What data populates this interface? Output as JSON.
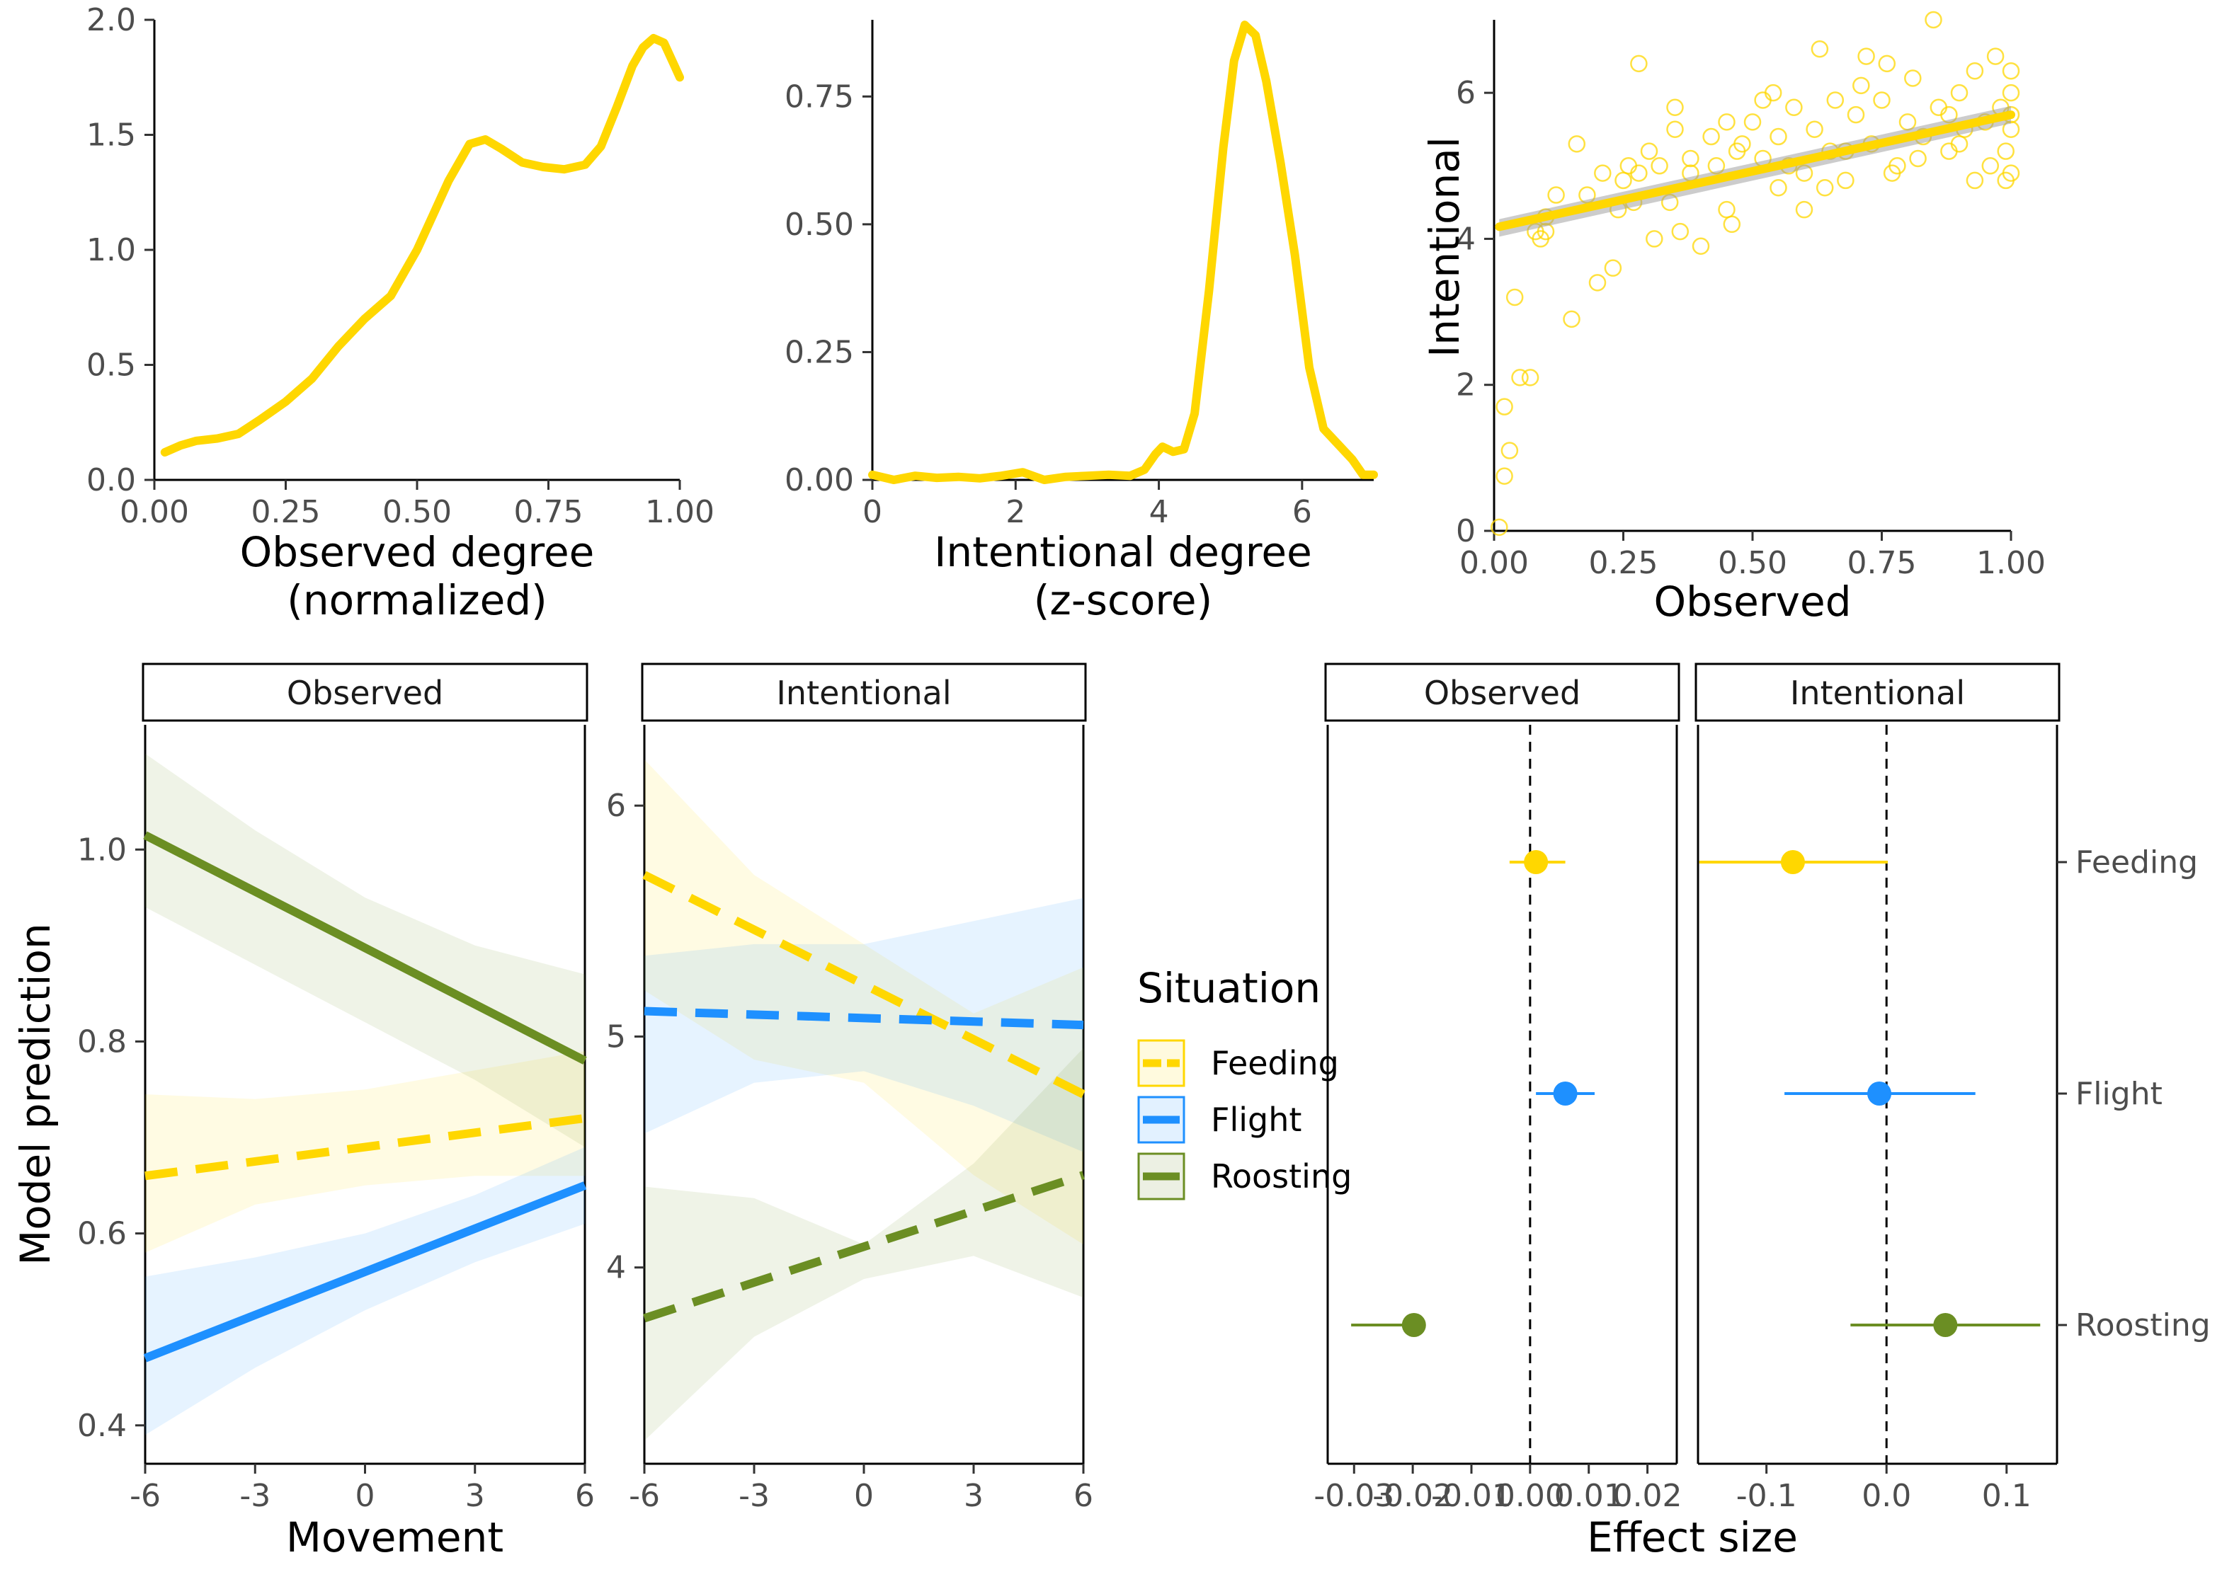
{
  "colors": {
    "Feeding": "#FFD700",
    "Flight": "#1E90FF",
    "Roosting": "#6B8E23"
  },
  "legend": {
    "title": "Situation",
    "items": [
      "Feeding",
      "Flight",
      "Roosting"
    ]
  },
  "chart_data": [
    {
      "id": "density_observed",
      "type": "line",
      "xlabel": "Observed degree\n(normalized)",
      "ylabel": "",
      "xlim": [
        0,
        1
      ],
      "ylim": [
        0,
        2.0
      ],
      "xticks": [
        0,
        0.25,
        0.5,
        0.75,
        1.0
      ],
      "xtick_labels": [
        "0.00",
        "0.25",
        "0.50",
        "0.75",
        "1.00"
      ],
      "yticks": [
        0,
        0.5,
        1.0,
        1.5,
        2.0
      ],
      "ytick_labels": [
        "0.0",
        "0.5",
        "1.0",
        "1.5",
        "2.0"
      ],
      "series": [
        {
          "color": "Feeding",
          "x": [
            0.02,
            0.05,
            0.08,
            0.12,
            0.16,
            0.2,
            0.25,
            0.3,
            0.35,
            0.4,
            0.45,
            0.5,
            0.53,
            0.56,
            0.6,
            0.63,
            0.66,
            0.7,
            0.74,
            0.78,
            0.82,
            0.85,
            0.88,
            0.91,
            0.93,
            0.95,
            0.97,
            0.99,
            1.0
          ],
          "y": [
            0.12,
            0.15,
            0.17,
            0.18,
            0.2,
            0.26,
            0.34,
            0.44,
            0.58,
            0.7,
            0.8,
            1.0,
            1.15,
            1.3,
            1.46,
            1.48,
            1.44,
            1.38,
            1.36,
            1.35,
            1.37,
            1.45,
            1.62,
            1.8,
            1.88,
            1.92,
            1.9,
            1.8,
            1.75
          ]
        }
      ]
    },
    {
      "id": "density_intentional",
      "type": "line",
      "xlabel": "Intentional degree\n(z-score)",
      "ylabel": "",
      "xlim": [
        0,
        7
      ],
      "ylim": [
        0,
        0.9
      ],
      "xticks": [
        0,
        2,
        4,
        6
      ],
      "xtick_labels": [
        "0",
        "2",
        "4",
        "6"
      ],
      "yticks": [
        0,
        0.25,
        0.5,
        0.75
      ],
      "ytick_labels": [
        "0.00",
        "0.25",
        "0.50",
        "0.75"
      ],
      "series": [
        {
          "color": "Feeding",
          "x": [
            0.0,
            0.3,
            0.6,
            0.9,
            1.2,
            1.5,
            1.8,
            2.1,
            2.4,
            2.7,
            3.0,
            3.3,
            3.6,
            3.8,
            3.95,
            4.05,
            4.2,
            4.35,
            4.5,
            4.7,
            4.9,
            5.05,
            5.2,
            5.35,
            5.5,
            5.7,
            5.9,
            6.1,
            6.3,
            6.5,
            6.7,
            6.85,
            7.0
          ],
          "y": [
            0.01,
            0.0,
            0.008,
            0.004,
            0.006,
            0.003,
            0.008,
            0.015,
            0.0,
            0.006,
            0.008,
            0.01,
            0.008,
            0.02,
            0.05,
            0.065,
            0.055,
            0.06,
            0.13,
            0.37,
            0.65,
            0.82,
            0.89,
            0.87,
            0.78,
            0.62,
            0.44,
            0.22,
            0.1,
            0.07,
            0.04,
            0.01,
            0.01
          ]
        }
      ]
    },
    {
      "id": "scatter_observed_intentional",
      "type": "scatter",
      "xlabel": "Observed",
      "ylabel": "Intentional",
      "xlim": [
        0,
        1
      ],
      "ylim": [
        0,
        7
      ],
      "xticks": [
        0,
        0.25,
        0.5,
        0.75,
        1.0
      ],
      "xtick_labels": [
        "0.00",
        "0.25",
        "0.50",
        "0.75",
        "1.00"
      ],
      "yticks": [
        0,
        2,
        4,
        6
      ],
      "ytick_labels": [
        "0",
        "2",
        "4",
        "6"
      ],
      "fit": {
        "x": [
          0.0,
          1.0
        ],
        "y": [
          4.15,
          5.7
        ],
        "band": [
          0.12,
          0.12
        ]
      },
      "points": {
        "x": [
          0.01,
          0.02,
          0.02,
          0.03,
          0.04,
          0.05,
          0.07,
          0.08,
          0.09,
          0.1,
          0.1,
          0.12,
          0.15,
          0.16,
          0.18,
          0.2,
          0.21,
          0.23,
          0.25,
          0.26,
          0.27,
          0.28,
          0.3,
          0.31,
          0.32,
          0.34,
          0.35,
          0.36,
          0.38,
          0.4,
          0.42,
          0.43,
          0.45,
          0.46,
          0.48,
          0.5,
          0.52,
          0.54,
          0.55,
          0.57,
          0.58,
          0.6,
          0.62,
          0.63,
          0.65,
          0.66,
          0.68,
          0.7,
          0.71,
          0.73,
          0.75,
          0.76,
          0.78,
          0.8,
          0.81,
          0.83,
          0.85,
          0.86,
          0.88,
          0.9,
          0.91,
          0.93,
          0.95,
          0.96,
          0.97,
          0.98,
          0.99,
          1.0,
          1.0,
          1.0,
          1.0,
          1.0,
          0.6,
          0.45,
          0.52,
          0.68,
          0.72,
          0.35,
          0.28,
          0.64,
          0.82,
          0.77,
          0.9,
          0.93,
          0.55,
          0.47,
          0.38,
          0.24,
          0.88,
          0.99
        ],
        "y": [
          0.05,
          0.75,
          1.7,
          1.1,
          3.2,
          2.1,
          2.1,
          4.1,
          4.0,
          4.1,
          4.3,
          4.6,
          2.9,
          5.3,
          4.6,
          3.4,
          4.9,
          3.6,
          4.8,
          5.0,
          4.5,
          6.4,
          5.2,
          4.0,
          5.0,
          4.5,
          5.8,
          4.1,
          5.1,
          3.9,
          5.4,
          5.0,
          5.6,
          4.2,
          5.3,
          5.6,
          5.1,
          6.0,
          5.4,
          5.0,
          5.8,
          4.4,
          5.5,
          6.6,
          5.2,
          5.9,
          4.8,
          5.7,
          6.1,
          5.3,
          5.9,
          6.4,
          5.0,
          5.6,
          6.2,
          5.4,
          7.0,
          5.8,
          5.2,
          6.0,
          5.5,
          6.3,
          5.6,
          5.0,
          6.5,
          5.8,
          5.2,
          6.0,
          5.5,
          6.3,
          4.9,
          5.7,
          4.9,
          4.4,
          5.9,
          5.2,
          6.5,
          5.5,
          4.9,
          4.7,
          5.1,
          4.9,
          5.3,
          4.8,
          4.7,
          5.2,
          4.9,
          4.4,
          5.7,
          4.8
        ]
      }
    },
    {
      "id": "prediction_observed",
      "type": "line",
      "strip": "Observed",
      "xlabel": "Movement",
      "ylabel": "Model prediction",
      "xlim": [
        -6,
        6
      ],
      "ylim": [
        0.36,
        1.13
      ],
      "xticks": [
        -6,
        -3,
        0,
        3,
        6
      ],
      "xtick_labels": [
        "-6",
        "-3",
        "0",
        "3",
        "6"
      ],
      "yticks": [
        0.4,
        0.6,
        0.8,
        1.0
      ],
      "ytick_labels": [
        "0.4",
        "0.6",
        "0.8",
        "1.0"
      ],
      "series": [
        {
          "name": "Feeding",
          "dashed": true,
          "x": [
            -6,
            6
          ],
          "y": [
            0.66,
            0.72
          ],
          "band_x": [
            -6,
            -3,
            0,
            3,
            6
          ],
          "band_lo": [
            0.58,
            0.63,
            0.65,
            0.66,
            0.66
          ],
          "band_hi": [
            0.745,
            0.74,
            0.75,
            0.77,
            0.79
          ]
        },
        {
          "name": "Flight",
          "dashed": false,
          "x": [
            -6,
            6
          ],
          "y": [
            0.47,
            0.65
          ],
          "band_x": [
            -6,
            -3,
            0,
            3,
            6
          ],
          "band_lo": [
            0.39,
            0.46,
            0.52,
            0.57,
            0.61
          ],
          "band_hi": [
            0.555,
            0.575,
            0.6,
            0.64,
            0.69
          ]
        },
        {
          "name": "Roosting",
          "dashed": false,
          "x": [
            -6,
            6
          ],
          "y": [
            1.015,
            0.78
          ],
          "band_x": [
            -6,
            -3,
            0,
            3,
            6
          ],
          "band_lo": [
            0.94,
            0.88,
            0.82,
            0.76,
            0.69
          ],
          "band_hi": [
            1.1,
            1.02,
            0.95,
            0.9,
            0.87
          ]
        }
      ]
    },
    {
      "id": "prediction_intentional",
      "type": "line",
      "strip": "Intentional",
      "xlabel": "Movement",
      "ylabel": "",
      "xlim": [
        -6,
        6
      ],
      "ylim": [
        3.15,
        6.35
      ],
      "xticks": [
        -6,
        -3,
        0,
        3,
        6
      ],
      "xtick_labels": [
        "-6",
        "-3",
        "0",
        "3",
        "6"
      ],
      "yticks": [
        4,
        5,
        6
      ],
      "ytick_labels": [
        "4",
        "5",
        "6"
      ],
      "series": [
        {
          "name": "Feeding",
          "dashed": true,
          "x": [
            -6,
            6
          ],
          "y": [
            5.7,
            4.75
          ],
          "band_x": [
            -6,
            -3,
            0,
            3,
            6
          ],
          "band_lo": [
            5.2,
            4.9,
            4.8,
            4.4,
            4.1
          ],
          "band_hi": [
            6.2,
            5.7,
            5.4,
            5.1,
            5.3
          ]
        },
        {
          "name": "Flight",
          "dashed": true,
          "x": [
            -6,
            6
          ],
          "y": [
            5.11,
            5.05
          ],
          "band_x": [
            -6,
            -3,
            0,
            3,
            6
          ],
          "band_lo": [
            4.58,
            4.8,
            4.85,
            4.7,
            4.5
          ],
          "band_hi": [
            5.35,
            5.4,
            5.4,
            5.5,
            5.6
          ]
        },
        {
          "name": "Roosting",
          "dashed": true,
          "x": [
            -6,
            6
          ],
          "y": [
            3.78,
            4.4
          ],
          "band_x": [
            -6,
            -3,
            0,
            3,
            6
          ],
          "band_lo": [
            3.25,
            3.7,
            3.95,
            4.05,
            3.87
          ],
          "band_hi": [
            4.35,
            4.3,
            4.1,
            4.45,
            4.95
          ]
        }
      ]
    },
    {
      "id": "effect_observed",
      "type": "scatter",
      "strip": "Observed",
      "xlabel": "Effect size",
      "xlim": [
        -0.0345,
        0.025
      ],
      "xticks": [
        -0.03,
        -0.02,
        -0.01,
        0.0,
        0.01,
        0.02
      ],
      "xtick_labels": [
        "-0.03",
        "-0.02",
        "-0.01",
        "0.00",
        "0.01",
        "0.02"
      ],
      "categories": [
        "Feeding",
        "Flight",
        "Roosting"
      ],
      "estimate": [
        0.001,
        0.006,
        -0.0198
      ],
      "lo": [
        -0.0035,
        0.001,
        -0.0305
      ],
      "hi": [
        0.006,
        0.011,
        -0.0195
      ]
    },
    {
      "id": "effect_intentional",
      "type": "scatter",
      "strip": "Intentional",
      "xlabel": "",
      "xlim": [
        -0.157,
        0.142
      ],
      "xticks": [
        -0.1,
        0.0,
        0.1
      ],
      "xtick_labels": [
        "-0.1",
        "0.0",
        "0.1"
      ],
      "categories": [
        "Feeding",
        "Flight",
        "Roosting"
      ],
      "estimate": [
        -0.078,
        -0.006,
        0.049
      ],
      "lo": [
        -0.156,
        -0.085,
        -0.03
      ],
      "hi": [
        0.001,
        0.074,
        0.128
      ]
    }
  ]
}
